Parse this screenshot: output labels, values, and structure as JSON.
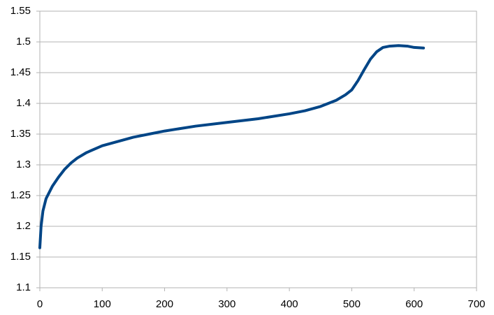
{
  "chart_data": {
    "type": "line",
    "x": [
      0,
      2,
      5,
      10,
      20,
      30,
      40,
      50,
      60,
      75,
      100,
      125,
      150,
      175,
      200,
      250,
      300,
      350,
      400,
      425,
      450,
      475,
      490,
      500,
      510,
      520,
      530,
      540,
      550,
      560,
      575,
      590,
      600,
      615
    ],
    "values": [
      1.165,
      1.2,
      1.225,
      1.245,
      1.265,
      1.28,
      1.293,
      1.303,
      1.311,
      1.32,
      1.331,
      1.338,
      1.345,
      1.35,
      1.355,
      1.363,
      1.369,
      1.375,
      1.383,
      1.388,
      1.395,
      1.405,
      1.414,
      1.422,
      1.437,
      1.455,
      1.472,
      1.484,
      1.491,
      1.493,
      1.494,
      1.493,
      1.491,
      1.49
    ],
    "color": "#004586",
    "xlim": [
      0,
      700
    ],
    "xticks": [
      0,
      100,
      200,
      300,
      400,
      500,
      600,
      700
    ],
    "ylim": [
      1.1,
      1.55
    ],
    "yticks": [
      1.1,
      1.15,
      1.2,
      1.25,
      1.3,
      1.35,
      1.4,
      1.45,
      1.5,
      1.55
    ],
    "grid": true
  }
}
